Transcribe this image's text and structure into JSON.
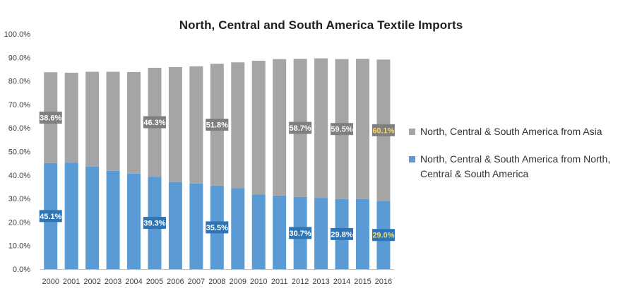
{
  "chart_data": {
    "type": "bar",
    "stacked": true,
    "title": "North, Central and South America Textile Imports",
    "categories": [
      "2000",
      "2001",
      "2002",
      "2003",
      "2004",
      "2005",
      "2006",
      "2007",
      "2008",
      "2009",
      "2010",
      "2011",
      "2012",
      "2013",
      "2014",
      "2015",
      "2016"
    ],
    "ylim": [
      0,
      100
    ],
    "yticks": [
      "0.0%",
      "10.0%",
      "20.0%",
      "30.0%",
      "40.0%",
      "50.0%",
      "60.0%",
      "70.0%",
      "80.0%",
      "90.0%",
      "100.0%"
    ],
    "grid": false,
    "legend_position": "right",
    "series": [
      {
        "name": "North, Central & South America from North, Central & South America",
        "color": "#5b9bd5",
        "values": [
          45.1,
          45.3,
          43.6,
          41.8,
          40.6,
          39.3,
          37.0,
          36.4,
          35.5,
          34.4,
          31.7,
          31.3,
          30.7,
          30.3,
          29.8,
          29.8,
          29.0
        ],
        "data_labels": {
          "2000": "45.1%",
          "2005": "39.3%",
          "2008": "35.5%",
          "2012": "30.7%",
          "2014": "29.8%",
          "2016": "29.0%"
        }
      },
      {
        "name": "North, Central & South America from Asia",
        "color": "#a5a5a5",
        "values": [
          38.6,
          38.2,
          40.3,
          42.1,
          43.2,
          46.3,
          48.9,
          49.8,
          51.8,
          53.5,
          56.9,
          58.0,
          58.7,
          59.3,
          59.5,
          59.6,
          60.1
        ],
        "data_labels": {
          "2000": "38.6%",
          "2005": "46.3%",
          "2008": "51.8%",
          "2012": "58.7%",
          "2014": "59.5%",
          "2016": "60.1%"
        }
      }
    ],
    "highlight_label_color": "#ffd966"
  }
}
